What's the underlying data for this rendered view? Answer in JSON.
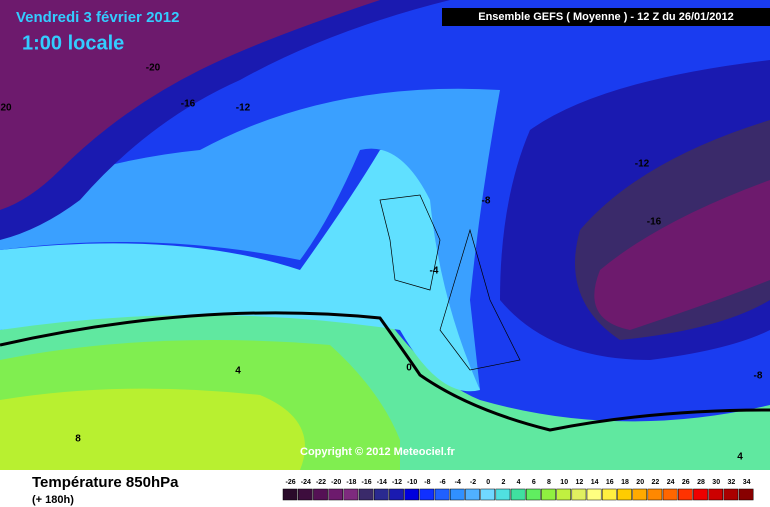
{
  "header": {
    "date": "Vendredi 3 février 2012",
    "time": "1:00 locale",
    "model": "Ensemble GEFS ( Moyenne )  -  12 Z du 26/01/2012"
  },
  "footer": {
    "variable": "Température 850hPa",
    "lead": "(+ 180h)",
    "copyright": "Copyright © 2012 Meteociel.fr"
  },
  "contour_labels": [
    -20,
    20,
    -16,
    -12,
    -12,
    -8,
    -16,
    -4,
    -8,
    4,
    0,
    8,
    4
  ],
  "colorbar": {
    "stops": [
      {
        "value": -26,
        "color": "#2a0a2a"
      },
      {
        "value": -24,
        "color": "#3d0d3d"
      },
      {
        "value": -22,
        "color": "#551155"
      },
      {
        "value": -20,
        "color": "#6d1a6d"
      },
      {
        "value": -18,
        "color": "#7e2a7e"
      },
      {
        "value": -16,
        "color": "#3a2a6a"
      },
      {
        "value": -14,
        "color": "#2a2a90"
      },
      {
        "value": -12,
        "color": "#1a1ab0"
      },
      {
        "value": -10,
        "color": "#0000dd"
      },
      {
        "value": -8,
        "color": "#1030ff"
      },
      {
        "value": -6,
        "color": "#2060ff"
      },
      {
        "value": -4,
        "color": "#3090ff"
      },
      {
        "value": -2,
        "color": "#50b0ff"
      },
      {
        "value": 0,
        "color": "#70d8ff"
      },
      {
        "value": 2,
        "color": "#50e0e0"
      },
      {
        "value": 4,
        "color": "#40e0a0"
      },
      {
        "value": 6,
        "color": "#60ee60"
      },
      {
        "value": 8,
        "color": "#90f040"
      },
      {
        "value": 10,
        "color": "#c0f040"
      },
      {
        "value": 12,
        "color": "#e0f060"
      },
      {
        "value": 14,
        "color": "#ffff80"
      },
      {
        "value": 16,
        "color": "#ffee40"
      },
      {
        "value": 18,
        "color": "#ffcc00"
      },
      {
        "value": 20,
        "color": "#ffaa00"
      },
      {
        "value": 22,
        "color": "#ff8800"
      },
      {
        "value": 24,
        "color": "#ff6600"
      },
      {
        "value": 26,
        "color": "#ff3300"
      },
      {
        "value": 28,
        "color": "#ee0000"
      },
      {
        "value": 30,
        "color": "#cc0000"
      },
      {
        "value": 32,
        "color": "#aa0000"
      },
      {
        "value": 34,
        "color": "#880000"
      }
    ]
  }
}
